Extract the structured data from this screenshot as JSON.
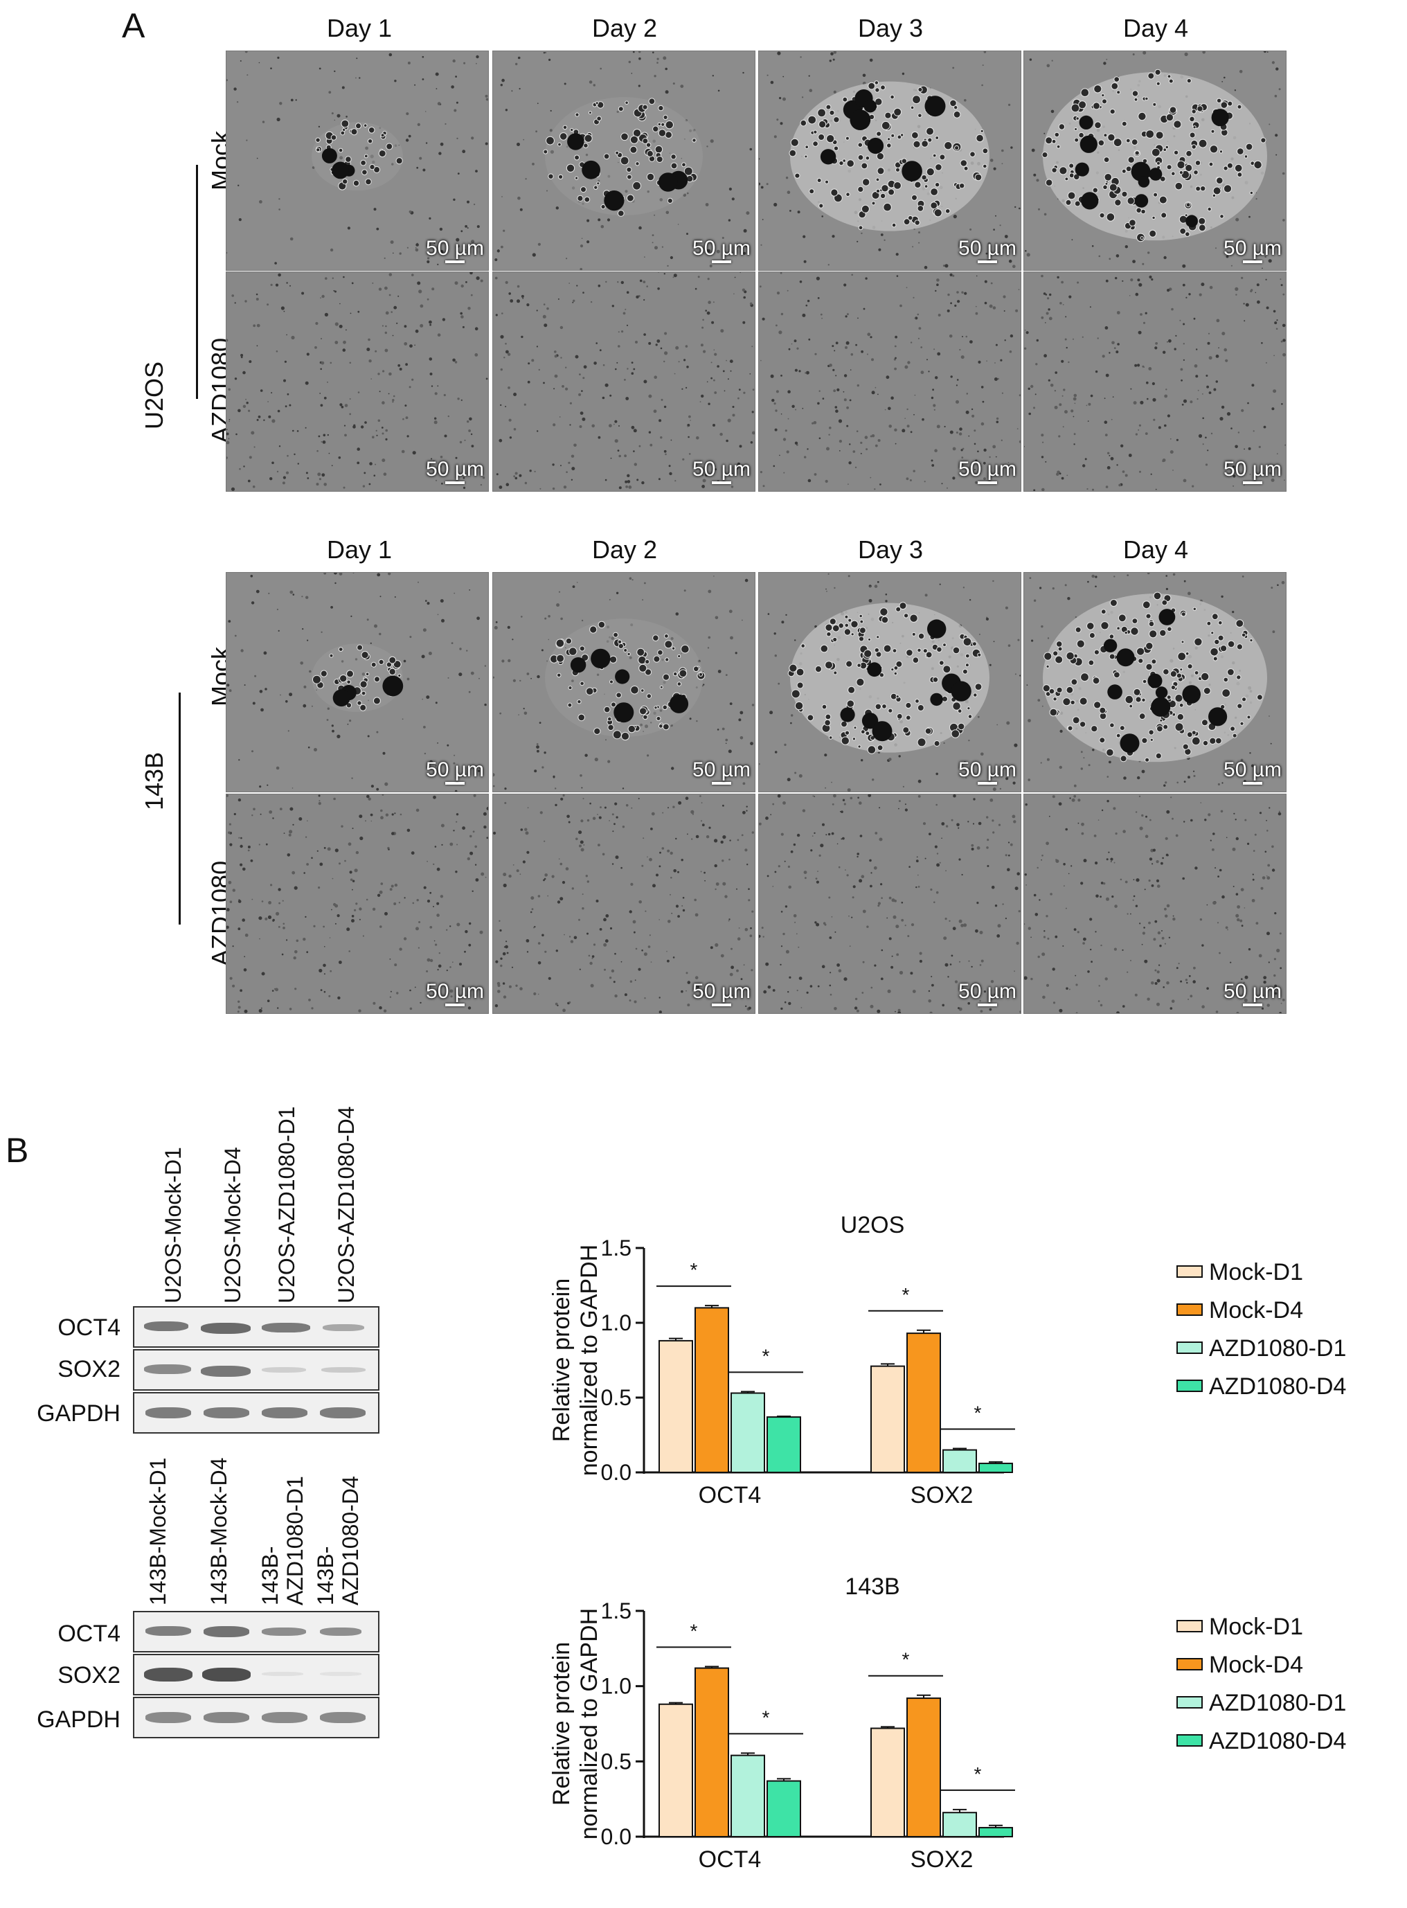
{
  "panel_a": {
    "letter": "A",
    "days": [
      "Day 1",
      "Day 2",
      "Day 3",
      "Day 4"
    ],
    "scale_label": "50 µm",
    "groups": [
      {
        "cell_line": "U2OS",
        "rows": [
          "Mock",
          "AZD1080"
        ]
      },
      {
        "cell_line": "143B",
        "rows": [
          "Mock",
          "AZD1080"
        ]
      }
    ]
  },
  "panel_b": {
    "letter": "B",
    "blots": [
      {
        "lanes": [
          "U2OS-Mock-D1",
          "U2OS-Mock-D4",
          "U2OS-AZD1080-D1",
          "U2OS-AZD1080-D4"
        ],
        "proteins": [
          "OCT4",
          "SOX2",
          "GAPDH"
        ]
      },
      {
        "lanes": [
          "143B-Mock-D1",
          "143B-Mock-D4",
          "143B-\nAZD1080-D1",
          "143B-\nAZD1080-D4"
        ],
        "proteins": [
          "OCT4",
          "SOX2",
          "GAPDH"
        ]
      }
    ]
  },
  "chart_data": [
    {
      "type": "bar",
      "title": "U2OS",
      "ylabel": "Relative protein\nnormalized to GAPDH",
      "ylim": [
        0,
        1.5
      ],
      "yticks": [
        "0.0",
        "0.5",
        "1.0",
        "1.5"
      ],
      "categories": [
        "OCT4",
        "SOX2"
      ],
      "series": [
        {
          "name": "Mock-D1",
          "values": [
            0.88,
            0.71
          ],
          "errors": [
            0.015,
            0.015
          ]
        },
        {
          "name": "Mock-D4",
          "values": [
            1.1,
            0.93
          ],
          "errors": [
            0.015,
            0.02
          ]
        },
        {
          "name": "AZD1080-D1",
          "values": [
            0.53,
            0.15
          ],
          "errors": [
            0.01,
            0.01
          ]
        },
        {
          "name": "AZD1080-D4",
          "values": [
            0.37,
            0.06
          ],
          "errors": [
            0.005,
            0.01
          ]
        }
      ],
      "significance": [
        "*",
        "*",
        "*",
        "*"
      ],
      "colors": [
        "#fde3c4",
        "#f7961e",
        "#b2f2dc",
        "#3ee3a6"
      ],
      "legend": "right"
    },
    {
      "type": "bar",
      "title": "143B",
      "ylabel": "Relative protein\nnormalized to GAPDH",
      "ylim": [
        0,
        1.5
      ],
      "yticks": [
        "0.0",
        "0.5",
        "1.0",
        "1.5"
      ],
      "categories": [
        "OCT4",
        "SOX2"
      ],
      "series": [
        {
          "name": "Mock-D1",
          "values": [
            0.88,
            0.72
          ],
          "errors": [
            0.01,
            0.01
          ]
        },
        {
          "name": "Mock-D4",
          "values": [
            1.12,
            0.92
          ],
          "errors": [
            0.01,
            0.02
          ]
        },
        {
          "name": "AZD1080-D1",
          "values": [
            0.54,
            0.16
          ],
          "errors": [
            0.015,
            0.02
          ]
        },
        {
          "name": "AZD1080-D4",
          "values": [
            0.37,
            0.06
          ],
          "errors": [
            0.015,
            0.015
          ]
        }
      ],
      "significance": [
        "*",
        "*",
        "*",
        "*"
      ],
      "colors": [
        "#fde3c4",
        "#f7961e",
        "#b2f2dc",
        "#3ee3a6"
      ],
      "legend": "right"
    }
  ]
}
